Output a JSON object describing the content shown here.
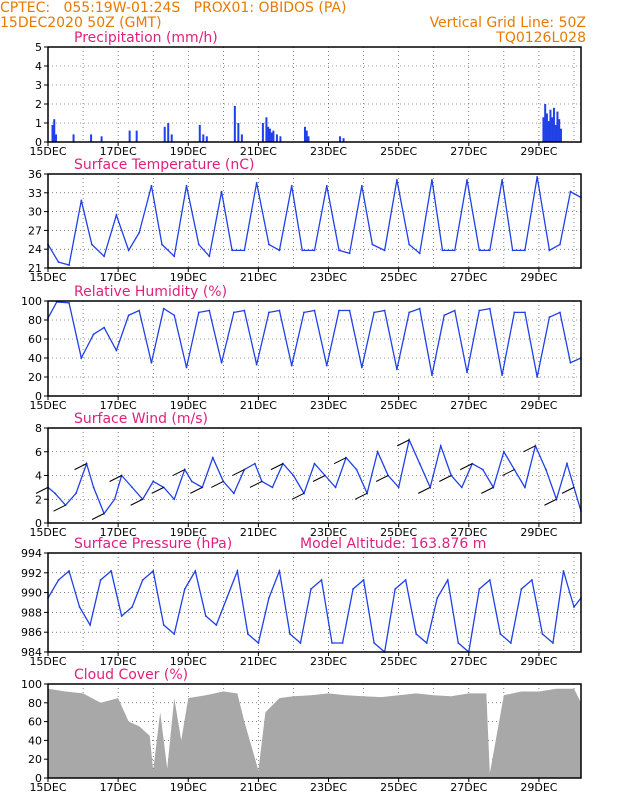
{
  "header": {
    "line1_left": "CPTEC:   055:19W-01:24S   PROX01: OBIDOS (PA)",
    "line2_left": "15DEC2020 50Z (GMT)",
    "line1_right": "Vertical Grid Line: 50Z",
    "line2_right": "TQ0126L028"
  },
  "colors": {
    "header": "#e87a00",
    "title": "#e0207f",
    "series": "#2040e8",
    "cloud": "#a8a8a8",
    "grid": "#000000"
  },
  "x_ticks": [
    "15DEC",
    "17DEC",
    "19DEC",
    "21DEC",
    "23DEC",
    "25DEC",
    "27DEC",
    "29DEC"
  ],
  "chart_data": [
    {
      "type": "bar",
      "title": "Precipitation (mm/h)",
      "ylim": [
        0,
        5
      ],
      "yticks": [
        "0",
        "1",
        "2",
        "3",
        "4",
        "5"
      ],
      "x_days": [
        0.1,
        0.15,
        0.2,
        0.7,
        1.2,
        1.5,
        2.3,
        2.5,
        3.3,
        3.4,
        3.5,
        4.3,
        4.4,
        4.5,
        5.3,
        5.4,
        5.5,
        6.1,
        6.2,
        6.25,
        6.3,
        6.35,
        6.4,
        6.5,
        6.6,
        7.3,
        7.35,
        7.4,
        8.3,
        8.4,
        14.1,
        14.15,
        14.2,
        14.25,
        14.3,
        14.35,
        14.4,
        14.45,
        14.5,
        14.55,
        14.6
      ],
      "values": [
        0.9,
        1.2,
        0.4,
        0.4,
        0.4,
        0.3,
        0.6,
        0.6,
        0.8,
        1.0,
        0.4,
        0.9,
        0.4,
        0.3,
        1.9,
        1.0,
        0.4,
        1.0,
        1.3,
        0.8,
        0.7,
        0.5,
        0.6,
        0.4,
        0.3,
        0.8,
        0.6,
        0.3,
        0.3,
        0.2,
        1.3,
        2.0,
        1.5,
        1.1,
        1.7,
        1.3,
        1.8,
        0.9,
        1.6,
        1.2,
        0.7
      ]
    },
    {
      "type": "line",
      "title": "Surface Temperature (nC)",
      "ylim": [
        20,
        36
      ],
      "yticks": [
        "21",
        "24",
        "27",
        "30",
        "33",
        "36"
      ],
      "x_days": [
        0,
        0.3,
        0.6,
        0.95,
        1.25,
        1.6,
        1.95,
        2.3,
        2.6,
        2.95,
        3.25,
        3.6,
        3.95,
        4.3,
        4.6,
        4.95,
        5.25,
        5.6,
        5.95,
        6.3,
        6.6,
        6.95,
        7.25,
        7.6,
        7.95,
        8.3,
        8.6,
        8.95,
        9.25,
        9.6,
        9.95,
        10.3,
        10.6,
        10.95,
        11.25,
        11.6,
        11.95,
        12.3,
        12.6,
        12.95,
        13.25,
        13.6,
        13.95,
        14.3,
        14.6,
        14.9,
        15.2
      ],
      "values": [
        24,
        21,
        20.5,
        31.5,
        24,
        22,
        29,
        23,
        26,
        34,
        24,
        22,
        34,
        24,
        22,
        33,
        23,
        23,
        34.5,
        24,
        23,
        34,
        23,
        23,
        34,
        23,
        22.5,
        34,
        24,
        23,
        35,
        24,
        22.5,
        35,
        23,
        23,
        35,
        23,
        23,
        35,
        23,
        23,
        35.5,
        23,
        24,
        33,
        32
      ]
    },
    {
      "type": "line",
      "title": "Relative Humidity (%)",
      "ylim": [
        0,
        100
      ],
      "yticks": [
        "0",
        "20",
        "40",
        "60",
        "80",
        "100"
      ],
      "x_days": [
        0,
        0.25,
        0.6,
        0.95,
        1.3,
        1.6,
        1.95,
        2.3,
        2.6,
        2.95,
        3.3,
        3.6,
        3.95,
        4.3,
        4.6,
        4.95,
        5.3,
        5.6,
        5.95,
        6.3,
        6.6,
        6.95,
        7.3,
        7.6,
        7.95,
        8.3,
        8.6,
        8.95,
        9.3,
        9.6,
        9.95,
        10.3,
        10.6,
        10.95,
        11.3,
        11.6,
        11.95,
        12.3,
        12.6,
        12.95,
        13.3,
        13.6,
        13.95,
        14.3,
        14.6,
        14.9,
        15.2
      ],
      "values": [
        82,
        99,
        98,
        40,
        65,
        72,
        48,
        85,
        90,
        35,
        92,
        85,
        30,
        88,
        90,
        35,
        88,
        90,
        33,
        88,
        90,
        32,
        88,
        90,
        32,
        90,
        90,
        30,
        88,
        90,
        28,
        88,
        92,
        22,
        85,
        90,
        25,
        90,
        92,
        22,
        88,
        88,
        20,
        83,
        88,
        35,
        40
      ]
    },
    {
      "type": "line",
      "title": "Surface Wind (m/s)",
      "ylim": [
        0,
        8
      ],
      "yticks": [
        "0",
        "2",
        "4",
        "6",
        "8"
      ],
      "x_days": [
        0,
        0.2,
        0.5,
        0.8,
        1.1,
        1.3,
        1.6,
        1.9,
        2.1,
        2.4,
        2.7,
        3.0,
        3.3,
        3.6,
        3.9,
        4.1,
        4.4,
        4.7,
        5.0,
        5.3,
        5.6,
        5.9,
        6.1,
        6.4,
        6.7,
        7.0,
        7.3,
        7.6,
        7.9,
        8.2,
        8.5,
        8.8,
        9.1,
        9.4,
        9.7,
        10.0,
        10.3,
        10.6,
        10.9,
        11.2,
        11.5,
        11.8,
        12.1,
        12.4,
        12.7,
        13.0,
        13.3,
        13.6,
        13.9,
        14.2,
        14.5,
        14.8,
        15.0,
        15.2
      ],
      "values": [
        3,
        2.5,
        1.5,
        2.5,
        5,
        3,
        0.8,
        2,
        4,
        3,
        2,
        3.5,
        3,
        2,
        4.5,
        3.5,
        3,
        5.5,
        3.5,
        2.5,
        4.5,
        5,
        3.5,
        3,
        5,
        4,
        2.5,
        5,
        4,
        3,
        5.5,
        4.5,
        2.5,
        6,
        4,
        3,
        7,
        5,
        3,
        6.5,
        4,
        3,
        5,
        4.5,
        3,
        6,
        4.5,
        3,
        6.5,
        4.5,
        2,
        5,
        3,
        1
      ]
    },
    {
      "type": "line",
      "title": "Surface Pressure (hPa)",
      "annotation": "Model Altitude: 163.876 m",
      "ylim": [
        984,
        995
      ],
      "yticks": [
        "984",
        "986",
        "988",
        "990",
        "992",
        "994"
      ],
      "x_days": [
        0,
        0.3,
        0.6,
        0.9,
        1.2,
        1.5,
        1.8,
        2.1,
        2.4,
        2.7,
        3.0,
        3.3,
        3.6,
        3.9,
        4.2,
        4.5,
        4.8,
        5.1,
        5.4,
        5.7,
        6.0,
        6.3,
        6.6,
        6.9,
        7.2,
        7.5,
        7.8,
        8.1,
        8.4,
        8.7,
        9.0,
        9.3,
        9.6,
        9.9,
        10.2,
        10.5,
        10.8,
        11.1,
        11.4,
        11.7,
        12.0,
        12.3,
        12.6,
        12.9,
        13.2,
        13.5,
        13.8,
        14.1,
        14.4,
        14.7,
        15.0,
        15.2
      ],
      "values": [
        990,
        992,
        993,
        989,
        987,
        992,
        993,
        988,
        989,
        992,
        993,
        987,
        986,
        991,
        993,
        988,
        987,
        990,
        993,
        986,
        985,
        990,
        993,
        986,
        985,
        991,
        992,
        985,
        985,
        991,
        992,
        985,
        984,
        991,
        992,
        986,
        985,
        990,
        992,
        985,
        984,
        991,
        992,
        986,
        985,
        991,
        992,
        986,
        985,
        993,
        989,
        990
      ]
    },
    {
      "type": "area",
      "title": "Cloud Cover (%)",
      "ylim": [
        0,
        100
      ],
      "yticks": [
        "0",
        "20",
        "40",
        "60",
        "80",
        "100"
      ],
      "x_days": [
        0,
        0.5,
        1.0,
        1.5,
        2.0,
        2.3,
        2.6,
        2.9,
        3.0,
        3.2,
        3.4,
        3.6,
        3.8,
        4.0,
        4.5,
        5.0,
        5.4,
        5.6,
        6.0,
        6.2,
        6.6,
        7.0,
        7.5,
        8.0,
        8.5,
        9.0,
        9.5,
        10.0,
        10.5,
        11.0,
        11.5,
        12.0,
        12.5,
        12.6,
        13.0,
        13.5,
        14.0,
        14.5,
        15.0,
        15.2
      ],
      "values": [
        95,
        92,
        90,
        80,
        85,
        60,
        55,
        45,
        8,
        70,
        10,
        85,
        40,
        85,
        88,
        92,
        90,
        60,
        8,
        70,
        85,
        87,
        88,
        90,
        88,
        87,
        86,
        88,
        90,
        88,
        87,
        90,
        90,
        5,
        88,
        92,
        92,
        95,
        95,
        80
      ]
    }
  ]
}
